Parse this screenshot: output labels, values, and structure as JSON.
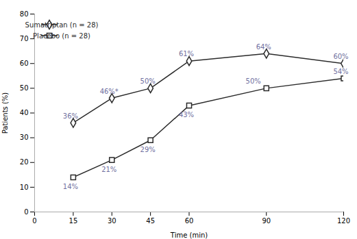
{
  "chart_data": {
    "type": "line",
    "x": [
      15,
      30,
      45,
      60,
      90,
      120
    ],
    "series": [
      {
        "name": "Sumatriptan (n = 28)",
        "color": "#2a2a2a",
        "marker": "diamond",
        "values": [
          36,
          46,
          50,
          61,
          64,
          60
        ],
        "value_labels": [
          "36%",
          "46%*",
          "50%",
          "61%",
          "64%",
          "60%"
        ]
      },
      {
        "name": "Placebo (n = 28)",
        "color": "#2a2a2a",
        "marker": "square",
        "values": [
          14,
          21,
          29,
          43,
          50,
          54
        ],
        "value_labels": [
          "14%",
          "21%",
          "29%",
          "43%",
          "50%",
          "54%"
        ]
      }
    ],
    "xlabel": "Time (min)",
    "ylabel": "Patients (%)",
    "xlim": [
      0,
      120
    ],
    "ylim": [
      0,
      80
    ],
    "xticks": [
      0,
      15,
      30,
      45,
      60,
      90,
      120
    ],
    "yticks": [
      0,
      10,
      20,
      30,
      40,
      50,
      60,
      70,
      80
    ],
    "data_labels": true,
    "legend": "upper left",
    "grid": false
  }
}
